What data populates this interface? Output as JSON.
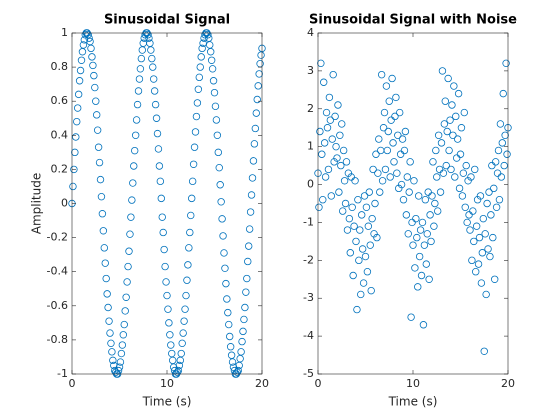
{
  "chart_data": [
    {
      "type": "scatter",
      "title": "Sinusoidal Signal",
      "xlabel": "Time (s)",
      "ylabel": "Amplitude",
      "color": "#0072bd",
      "xlim": [
        0,
        20
      ],
      "xticks": [
        0,
        10,
        20
      ],
      "ylim": [
        -1,
        1
      ],
      "yticks": [
        -1,
        -0.8,
        -0.6,
        -0.4,
        -0.2,
        0,
        0.2,
        0.4,
        0.6,
        0.8,
        1
      ],
      "x": [
        0,
        0.1,
        0.2,
        0.3,
        0.4,
        0.5,
        0.6,
        0.7,
        0.8,
        0.9,
        1,
        1.1,
        1.2,
        1.3,
        1.4,
        1.5,
        1.6,
        1.7,
        1.8,
        1.9,
        2,
        2.1,
        2.2,
        2.3,
        2.4,
        2.5,
        2.6,
        2.7,
        2.8,
        2.9,
        3,
        3.1,
        3.2,
        3.3,
        3.4,
        3.5,
        3.6,
        3.7,
        3.8,
        3.9,
        4,
        4.1,
        4.2,
        4.3,
        4.4,
        4.5,
        4.6,
        4.7,
        4.8,
        4.9,
        5,
        5.1,
        5.2,
        5.3,
        5.4,
        5.5,
        5.6,
        5.7,
        5.8,
        5.9,
        6,
        6.1,
        6.2,
        6.3,
        6.4,
        6.5,
        6.6,
        6.7,
        6.8,
        6.9,
        7,
        7.1,
        7.2,
        7.3,
        7.4,
        7.5,
        7.6,
        7.7,
        7.8,
        7.9,
        8,
        8.1,
        8.2,
        8.3,
        8.4,
        8.5,
        8.6,
        8.7,
        8.8,
        8.9,
        9,
        9.1,
        9.2,
        9.3,
        9.4,
        9.5,
        9.6,
        9.7,
        9.8,
        9.9,
        10,
        10.1,
        10.2,
        10.3,
        10.4,
        10.5,
        10.6,
        10.7,
        10.8,
        10.9,
        11,
        11.1,
        11.2,
        11.3,
        11.4,
        11.5,
        11.6,
        11.7,
        11.8,
        11.9,
        12,
        12.1,
        12.2,
        12.3,
        12.4,
        12.5,
        12.6,
        12.7,
        12.8,
        12.9,
        13,
        13.1,
        13.2,
        13.3,
        13.4,
        13.5,
        13.6,
        13.7,
        13.8,
        13.9,
        14,
        14.1,
        14.2,
        14.3,
        14.4,
        14.5,
        14.6,
        14.7,
        14.8,
        14.9,
        15,
        15.1,
        15.2,
        15.3,
        15.4,
        15.5,
        15.6,
        15.7,
        15.8,
        15.9,
        16,
        16.1,
        16.2,
        16.3,
        16.4,
        16.5,
        16.6,
        16.7,
        16.8,
        16.9,
        17,
        17.1,
        17.2,
        17.3,
        17.4,
        17.5,
        17.6,
        17.7,
        17.8,
        17.9,
        18,
        18.1,
        18.2,
        18.3,
        18.4,
        18.5,
        18.6,
        18.7,
        18.8,
        18.9,
        19,
        19.1,
        19.2,
        19.3,
        19.4,
        19.5,
        19.6,
        19.7,
        19.8,
        19.9,
        20
      ],
      "values": [
        0,
        0.1,
        0.2,
        0.3,
        0.39,
        0.48,
        0.56,
        0.64,
        0.72,
        0.78,
        0.84,
        0.89,
        0.93,
        0.96,
        0.99,
        1,
        1,
        0.99,
        0.97,
        0.95,
        0.91,
        0.86,
        0.81,
        0.75,
        0.68,
        0.6,
        0.52,
        0.43,
        0.33,
        0.24,
        0.14,
        0.04,
        -0.06,
        -0.16,
        -0.26,
        -0.35,
        -0.44,
        -0.53,
        -0.61,
        -0.69,
        -0.76,
        -0.82,
        -0.87,
        -0.92,
        -0.95,
        -0.98,
        -0.99,
        -1,
        -1,
        -0.98,
        -0.96,
        -0.93,
        -0.88,
        -0.83,
        -0.77,
        -0.71,
        -0.63,
        -0.55,
        -0.46,
        -0.37,
        -0.28,
        -0.18,
        -0.08,
        0.02,
        0.12,
        0.22,
        0.31,
        0.4,
        0.49,
        0.58,
        0.66,
        0.73,
        0.79,
        0.85,
        0.9,
        0.94,
        0.97,
        0.99,
        1,
        1,
        0.99,
        0.97,
        0.94,
        0.9,
        0.85,
        0.8,
        0.73,
        0.66,
        0.58,
        0.5,
        0.41,
        0.32,
        0.22,
        0.13,
        0.03,
        -0.08,
        -0.17,
        -0.27,
        -0.37,
        -0.46,
        -0.54,
        -0.62,
        -0.7,
        -0.77,
        -0.83,
        -0.88,
        -0.92,
        -0.96,
        -0.98,
        -1,
        -1,
        -0.99,
        -0.98,
        -0.95,
        -0.92,
        -0.88,
        -0.82,
        -0.76,
        -0.69,
        -0.62,
        -0.54,
        -0.45,
        -0.36,
        -0.26,
        -0.17,
        -0.07,
        0.03,
        0.13,
        0.23,
        0.33,
        0.42,
        0.51,
        0.59,
        0.67,
        0.74,
        0.8,
        0.86,
        0.91,
        0.94,
        0.97,
        0.99,
        1,
        1,
        0.99,
        0.97,
        0.93,
        0.89,
        0.84,
        0.79,
        0.72,
        0.65,
        0.57,
        0.49,
        0.4,
        0.3,
        0.21,
        0.11,
        0.01,
        -0.09,
        -0.19,
        -0.29,
        -0.38,
        -0.47,
        -0.56,
        -0.64,
        -0.71,
        -0.78,
        -0.84,
        -0.89,
        -0.93,
        -0.96,
        -0.98,
        -1,
        -1,
        -0.99,
        -0.98,
        -0.95,
        -0.91,
        -0.87,
        -0.81,
        -0.75,
        -0.68,
        -0.61,
        -0.52,
        -0.44,
        -0.34,
        -0.25,
        -0.15,
        -0.05,
        0.05,
        0.15,
        0.25,
        0.35,
        0.44,
        0.53,
        0.61,
        0.69,
        0.76,
        0.82,
        0.87,
        0.91
      ]
    },
    {
      "type": "scatter",
      "title": "Sinusoidal Signal with Noise",
      "xlabel": "Time (s)",
      "color": "#0072bd",
      "xlim": [
        0,
        20
      ],
      "xticks": [
        0,
        10,
        20
      ],
      "ylim": [
        -5,
        4
      ],
      "yticks": [
        -5,
        -4,
        -3,
        -2,
        -1,
        0,
        1,
        2,
        3,
        4
      ],
      "x": [
        0,
        0.1,
        0.2,
        0.3,
        0.4,
        0.5,
        0.6,
        0.7,
        0.8,
        0.9,
        1,
        1.1,
        1.2,
        1.3,
        1.4,
        1.5,
        1.6,
        1.7,
        1.8,
        1.9,
        2,
        2.1,
        2.2,
        2.3,
        2.4,
        2.5,
        2.6,
        2.7,
        2.8,
        2.9,
        3,
        3.1,
        3.2,
        3.3,
        3.4,
        3.5,
        3.6,
        3.7,
        3.8,
        3.9,
        4,
        4.1,
        4.2,
        4.3,
        4.4,
        4.5,
        4.6,
        4.7,
        4.8,
        4.9,
        5,
        5.1,
        5.2,
        5.3,
        5.4,
        5.5,
        5.6,
        5.7,
        5.8,
        5.9,
        6,
        6.1,
        6.2,
        6.3,
        6.4,
        6.5,
        6.6,
        6.7,
        6.8,
        6.9,
        7,
        7.1,
        7.2,
        7.3,
        7.4,
        7.5,
        7.6,
        7.7,
        7.8,
        7.9,
        8,
        8.1,
        8.2,
        8.3,
        8.4,
        8.5,
        8.6,
        8.7,
        8.8,
        8.9,
        9,
        9.1,
        9.2,
        9.3,
        9.4,
        9.5,
        9.6,
        9.7,
        9.8,
        9.9,
        10,
        10.1,
        10.2,
        10.3,
        10.4,
        10.5,
        10.6,
        10.7,
        10.8,
        10.9,
        11,
        11.1,
        11.2,
        11.3,
        11.4,
        11.5,
        11.6,
        11.7,
        11.8,
        11.9,
        12,
        12.1,
        12.2,
        12.3,
        12.4,
        12.5,
        12.6,
        12.7,
        12.8,
        12.9,
        13,
        13.1,
        13.2,
        13.3,
        13.4,
        13.5,
        13.6,
        13.7,
        13.8,
        13.9,
        14,
        14.1,
        14.2,
        14.3,
        14.4,
        14.5,
        14.6,
        14.7,
        14.8,
        14.9,
        15,
        15.1,
        15.2,
        15.3,
        15.4,
        15.5,
        15.6,
        15.7,
        15.8,
        15.9,
        16,
        16.1,
        16.2,
        16.3,
        16.4,
        16.5,
        16.6,
        16.7,
        16.8,
        16.9,
        17,
        17.1,
        17.2,
        17.3,
        17.4,
        17.5,
        17.6,
        17.7,
        17.8,
        17.9,
        18,
        18.1,
        18.2,
        18.3,
        18.4,
        18.5,
        18.6,
        18.7,
        18.8,
        18.9,
        19,
        19.1,
        19.2,
        19.3,
        19.4,
        19.5,
        19.6,
        19.7,
        19.8,
        19.9,
        20
      ],
      "values": [
        0.3,
        -0.6,
        1.4,
        3.2,
        0.8,
        -0.4,
        2.7,
        1.1,
        0.2,
        1.9,
        1.5,
        0.4,
        2.3,
        1.7,
        -0.3,
        1.2,
        2.9,
        0.6,
        1.8,
        1,
        0.7,
        2.1,
        -0.2,
        1.3,
        0.5,
        1.6,
        -0.7,
        0.9,
        0.1,
        -0.5,
        0.6,
        -1.2,
        0.3,
        -0.9,
        -1.8,
        0.2,
        -0.6,
        -2.4,
        -1.1,
        0.1,
        -1.5,
        -3.3,
        -0.4,
        -2,
        -1.2,
        -2.9,
        -0.8,
        -1.7,
        -2.6,
        -0.3,
        -1.9,
        -0.6,
        -2.3,
        -1.1,
        -0.2,
        -1.6,
        -2.8,
        -0.9,
        0.4,
        -1.3,
        -0.5,
        0.8,
        -1.4,
        0.3,
        1.2,
        -0.2,
        0.9,
        2.9,
        0.1,
        1.5,
        1.9,
        0.4,
        2.6,
        0.9,
        1.4,
        2.2,
        0.2,
        1.7,
        2.8,
        1.1,
        0.6,
        1.8,
        2.3,
        0.3,
        1.3,
        -0.1,
        1.9,
        0.8,
        0,
        1.2,
        -0.4,
        0.9,
        1.4,
        -0.8,
        0.2,
        -1.3,
        -0.2,
        0.6,
        -3.5,
        -1,
        -1.6,
        0.1,
        -2.2,
        -0.9,
        -1.4,
        -2.7,
        -0.3,
        -1.9,
        -1.2,
        -2.4,
        -1,
        -3.7,
        -1.6,
        -0.4,
        -2.1,
        -1.3,
        -0.2,
        -2.5,
        -0.8,
        -1.5,
        -0.3,
        0.6,
        -1.1,
        -0.5,
        0.9,
        0.2,
        -0.7,
        1.3,
        0.4,
        -0.2,
        1.1,
        3,
        0.3,
        1.6,
        2.2,
        0.5,
        1.4,
        2.8,
        0.9,
        1.7,
        0.4,
        2.1,
        1.3,
        2.6,
        0.2,
        1.8,
        0.7,
        1.2,
        2.4,
        -0.1,
        0.8,
        1.5,
        -0.3,
        0.3,
        1.9,
        -0.6,
        0.5,
        -1,
        0.1,
        -0.8,
        -1.2,
        0.2,
        -2,
        -0.7,
        -1.5,
        0.4,
        -2.3,
        -1.1,
        -0.4,
        -2.1,
        -1.4,
        -0.3,
        -2.6,
        -1.8,
        -0.9,
        -4.4,
        -1.3,
        -2.9,
        -0.5,
        -1.7,
        -0.2,
        -1.9,
        -0.8,
        0.5,
        -1.4,
        -0.1,
        -2.5,
        0.6,
        -0.6,
        0.3,
        0.9,
        -0.4,
        1.6,
        0.2,
        1.1,
        2.4,
        0.5,
        1.3,
        3.2,
        0.8,
        1.5
      ]
    }
  ]
}
